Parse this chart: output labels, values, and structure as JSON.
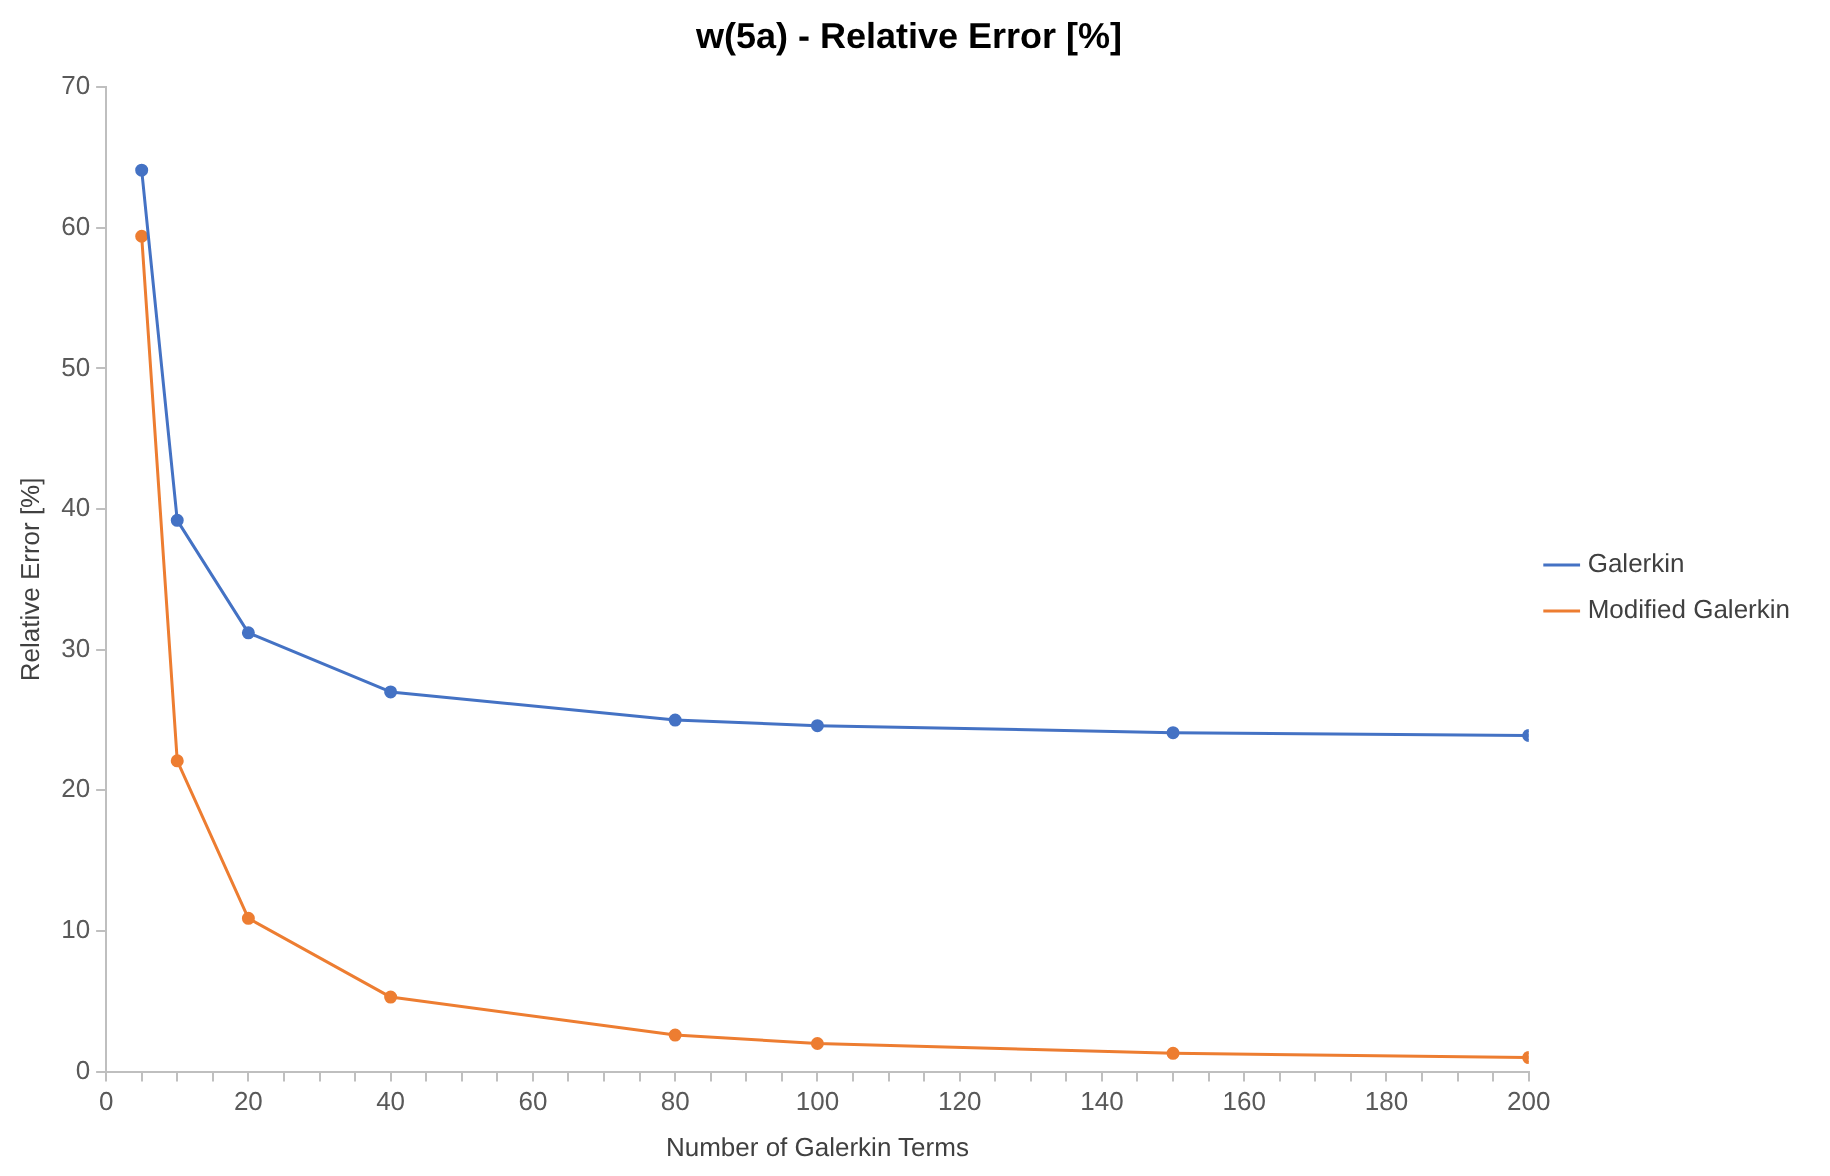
{
  "chart_data": {
    "type": "line",
    "title": "w(5a) - Relative Error [%]",
    "xlabel": "Number of Galerkin Terms",
    "ylabel": "Relative Error [%]",
    "x": [
      5,
      10,
      20,
      40,
      80,
      100,
      150,
      200
    ],
    "series": [
      {
        "name": "Galerkin",
        "color": "#4472c4",
        "values": [
          64.1,
          39.2,
          31.2,
          27.0,
          25.0,
          24.6,
          24.1,
          23.9
        ]
      },
      {
        "name": "Modified Galerkin",
        "color": "#ed7d31",
        "values": [
          59.4,
          22.1,
          10.9,
          5.3,
          2.6,
          2.0,
          1.3,
          1.0
        ]
      }
    ],
    "xlim": [
      0,
      200
    ],
    "xticks": [
      0,
      {
        "value": 5,
        "label": null
      },
      {
        "value": 10,
        "label": null
      },
      {
        "value": 15,
        "label": null
      },
      20,
      {
        "value": 25,
        "label": null
      },
      {
        "value": 30,
        "label": null
      },
      {
        "value": 35,
        "label": null
      },
      40,
      {
        "value": 45,
        "label": null
      },
      {
        "value": 50,
        "label": null
      },
      {
        "value": 55,
        "label": null
      },
      60,
      {
        "value": 65,
        "label": null
      },
      {
        "value": 70,
        "label": null
      },
      {
        "value": 75,
        "label": null
      },
      80,
      {
        "value": 85,
        "label": null
      },
      {
        "value": 90,
        "label": null
      },
      {
        "value": 95,
        "label": null
      },
      100,
      {
        "value": 105,
        "label": null
      },
      {
        "value": 110,
        "label": null
      },
      {
        "value": 115,
        "label": null
      },
      120,
      {
        "value": 125,
        "label": null
      },
      {
        "value": 130,
        "label": null
      },
      {
        "value": 135,
        "label": null
      },
      140,
      {
        "value": 145,
        "label": null
      },
      {
        "value": 150,
        "label": null
      },
      {
        "value": 155,
        "label": null
      },
      160,
      {
        "value": 165,
        "label": null
      },
      {
        "value": 170,
        "label": null
      },
      {
        "value": 175,
        "label": null
      },
      180,
      {
        "value": 185,
        "label": null
      },
      {
        "value": 190,
        "label": null
      },
      {
        "value": 195,
        "label": null
      },
      200
    ],
    "ylim": [
      0,
      70
    ],
    "yticks": [
      0,
      10,
      20,
      30,
      40,
      50,
      60,
      70
    ],
    "grid": false,
    "legend": "right",
    "marker": "circle",
    "line_style": "solid"
  }
}
